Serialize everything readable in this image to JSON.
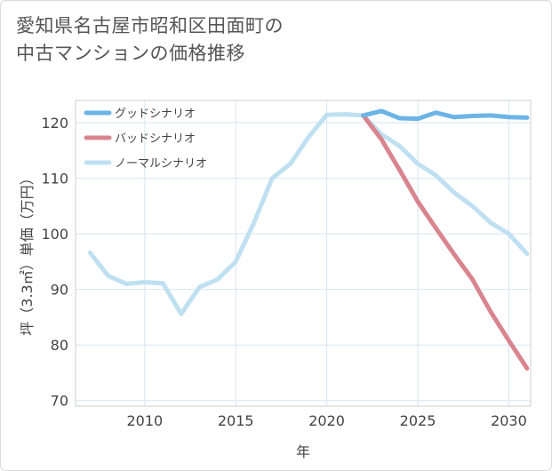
{
  "chart_data": {
    "type": "line",
    "title": "愛知県名古屋市昭和区田面町の中古マンションの価格推移",
    "title_lines": [
      "愛知県名古屋市昭和区田面町の",
      "中古マンションの価格推移"
    ],
    "xlabel": "年",
    "ylabel": "坪（3.3㎡）単価（万円）",
    "xlim": [
      2006.2,
      2031.2
    ],
    "ylim": [
      69,
      124
    ],
    "xticks": [
      2010,
      2015,
      2020,
      2025,
      2030
    ],
    "yticks": [
      70,
      80,
      90,
      100,
      110,
      120
    ],
    "grid": true,
    "legend_position": "top-left",
    "series": [
      {
        "name": "グッドシナリオ",
        "color": "#6cb4e6",
        "x": [
          2022,
          2023,
          2024,
          2025,
          2026,
          2027,
          2028,
          2029,
          2030,
          2031
        ],
        "values": [
          121.3,
          122.1,
          120.8,
          120.7,
          121.8,
          121.0,
          121.2,
          121.3,
          121.0,
          120.9
        ]
      },
      {
        "name": "バッドシナリオ",
        "color": "#d9858f",
        "x": [
          2022,
          2023,
          2024,
          2025,
          2026,
          2027,
          2028,
          2029,
          2030,
          2031
        ],
        "values": [
          121.3,
          117.0,
          111.5,
          105.8,
          101.0,
          96.3,
          91.8,
          86.0,
          80.8,
          75.8
        ]
      },
      {
        "name": "ノーマルシナリオ",
        "color": "#bfe0f1",
        "x": [
          2007,
          2008,
          2009,
          2010,
          2011,
          2012,
          2013,
          2014,
          2015,
          2016,
          2017,
          2018,
          2019,
          2020,
          2021,
          2022,
          2023,
          2024,
          2025,
          2026,
          2027,
          2028,
          2029,
          2030,
          2031
        ],
        "values": [
          96.6,
          92.4,
          91.0,
          91.3,
          91.1,
          85.6,
          90.4,
          91.8,
          95.0,
          102.0,
          110.0,
          112.6,
          117.4,
          121.4,
          121.5,
          121.3,
          117.9,
          115.8,
          112.6,
          110.5,
          107.4,
          105.0,
          102.0,
          100.0,
          96.4
        ]
      }
    ]
  }
}
